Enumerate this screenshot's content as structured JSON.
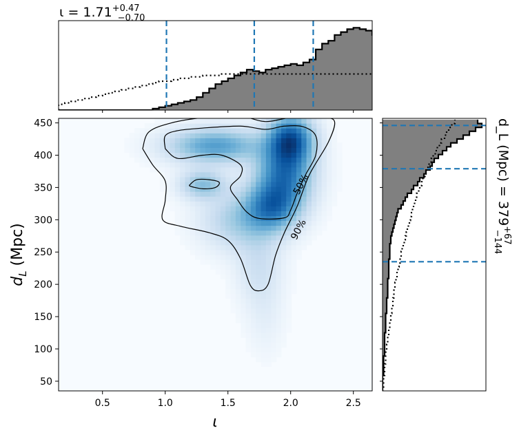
{
  "chart_data": {
    "type": "corner",
    "joint": {
      "type": "heatmap",
      "xlabel": "ι",
      "ylabel": "d_L (Mpc)",
      "xlim": [
        0.15,
        2.65
      ],
      "ylim": [
        35,
        457
      ],
      "xticks": [
        "0.5",
        "1.0",
        "1.5",
        "2.0",
        "2.5"
      ],
      "xtick_values": [
        0.5,
        1.0,
        1.5,
        2.0,
        2.5
      ],
      "yticks": [
        "50",
        "100",
        "150",
        "200",
        "250",
        "300",
        "350",
        "400",
        "450"
      ],
      "ytick_values": [
        50,
        100,
        150,
        200,
        250,
        300,
        350,
        400,
        450
      ],
      "colormap": "Blues",
      "density_peaks": [
        {
          "x": 2.0,
          "y": 425,
          "weight": 1.0,
          "sx": 0.12,
          "sy": 25
        },
        {
          "x": 1.95,
          "y": 370,
          "weight": 0.85,
          "sx": 0.15,
          "sy": 35
        },
        {
          "x": 1.85,
          "y": 320,
          "weight": 0.7,
          "sx": 0.14,
          "sy": 25
        },
        {
          "x": 1.4,
          "y": 415,
          "weight": 0.65,
          "sx": 0.25,
          "sy": 18
        },
        {
          "x": 1.3,
          "y": 355,
          "weight": 0.45,
          "sx": 0.12,
          "sy": 15
        },
        {
          "x": 1.6,
          "y": 300,
          "weight": 0.35,
          "sx": 0.2,
          "sy": 30
        },
        {
          "x": 1.75,
          "y": 230,
          "weight": 0.18,
          "sx": 0.12,
          "sy": 40
        },
        {
          "x": 1.8,
          "y": 150,
          "weight": 0.06,
          "sx": 0.1,
          "sy": 40
        }
      ],
      "contours": [
        {
          "label": "50%",
          "label_at": [
            2.08,
            355
          ],
          "paths": [
            [
              [
                1.0,
                410
              ],
              [
                1.0,
                430
              ],
              [
                1.1,
                438
              ],
              [
                1.3,
                442
              ],
              [
                1.6,
                445
              ],
              [
                1.8,
                440
              ],
              [
                1.95,
                445
              ],
              [
                2.1,
                444
              ],
              [
                2.2,
                430
              ],
              [
                2.2,
                400
              ],
              [
                2.12,
                370
              ],
              [
                2.05,
                340
              ],
              [
                2.0,
                315
              ],
              [
                1.95,
                303
              ],
              [
                1.75,
                302
              ],
              [
                1.65,
                312
              ],
              [
                1.58,
                330
              ],
              [
                1.52,
                350
              ],
              [
                1.6,
                368
              ],
              [
                1.6,
                385
              ],
              [
                1.45,
                400
              ],
              [
                1.3,
                400
              ],
              [
                1.1,
                395
              ],
              [
                1.0,
                410
              ]
            ],
            [
              [
                1.2,
                355
              ],
              [
                1.25,
                362
              ],
              [
                1.35,
                362
              ],
              [
                1.43,
                358
              ],
              [
                1.4,
                350
              ],
              [
                1.3,
                348
              ],
              [
                1.2,
                352
              ],
              [
                1.2,
                355
              ]
            ]
          ]
        },
        {
          "label": "90%",
          "label_at": [
            2.06,
            285
          ],
          "paths": [
            [
              [
                0.82,
                410
              ],
              [
                0.87,
                436
              ],
              [
                1.05,
                450
              ],
              [
                1.3,
                458
              ],
              [
                1.6,
                460
              ],
              [
                1.8,
                452
              ],
              [
                2.0,
                458
              ],
              [
                2.25,
                458
              ],
              [
                2.35,
                452
              ],
              [
                2.3,
                420
              ],
              [
                2.15,
                370
              ],
              [
                2.05,
                320
              ],
              [
                1.95,
                280
              ],
              [
                1.88,
                245
              ],
              [
                1.82,
                200
              ],
              [
                1.75,
                190
              ],
              [
                1.68,
                198
              ],
              [
                1.6,
                240
              ],
              [
                1.5,
                268
              ],
              [
                1.35,
                280
              ],
              [
                1.12,
                290
              ],
              [
                0.98,
                300
              ],
              [
                1.0,
                330
              ],
              [
                1.0,
                360
              ],
              [
                0.9,
                385
              ],
              [
                0.82,
                410
              ]
            ]
          ]
        }
      ]
    },
    "top_marginal": {
      "type": "histogram",
      "title": "ι = 1.71+0.47−0.70",
      "title_main": "ι = 1.71",
      "title_sup": "+0.47",
      "title_sub": "−0.70",
      "median": 1.71,
      "lines": [
        1.01,
        1.71,
        2.18
      ],
      "bin_edges_start": 0.15,
      "bin_width": 0.05,
      "filled_counts": [
        0,
        0,
        0,
        0,
        0,
        0,
        0,
        0,
        0,
        0,
        0,
        0,
        0,
        0,
        0,
        1,
        2,
        3,
        4,
        5,
        6,
        7,
        9,
        12,
        15,
        18,
        20,
        22,
        24,
        26,
        28,
        27,
        26,
        28,
        29,
        30,
        31,
        32,
        31,
        33,
        35,
        42,
        46,
        48,
        52,
        54,
        56,
        57,
        56,
        55,
        52,
        46,
        42,
        34,
        26,
        18,
        12,
        8,
        5,
        3,
        2,
        1,
        0,
        0,
        0,
        0,
        0,
        0,
        0,
        0,
        0,
        0
      ],
      "prior_counts": [
        4,
        5,
        6,
        7,
        8,
        9,
        10,
        11,
        12,
        13,
        14,
        15,
        16,
        17,
        18,
        19,
        20,
        20,
        21,
        22,
        22,
        23,
        23,
        24,
        24,
        24,
        25,
        25,
        25,
        25,
        25,
        25,
        25,
        25,
        25,
        25,
        25,
        25,
        25,
        25,
        25,
        25,
        25,
        25,
        25,
        25,
        25,
        25,
        25,
        25,
        25,
        24,
        24,
        24,
        23,
        23,
        22,
        22,
        21,
        20,
        20,
        19,
        18,
        17,
        16,
        15,
        14,
        13,
        12,
        11,
        10,
        9
      ],
      "ymax": 60
    },
    "right_marginal": {
      "type": "histogram",
      "title": "d_L (Mpc) = 379+67−144",
      "title_main": "d_L (Mpc) = 379",
      "title_sup": "+67",
      "title_sub": "−144",
      "median": 379,
      "lines": [
        235,
        379,
        446
      ],
      "bin_edges_start": 35,
      "bin_width": 6,
      "filled_counts": [
        0,
        0,
        0,
        0,
        1,
        1,
        1,
        1,
        1,
        2,
        2,
        2,
        2,
        2,
        2,
        3,
        3,
        3,
        3,
        3,
        4,
        4,
        4,
        4,
        5,
        5,
        5,
        5,
        5,
        6,
        6,
        6,
        6,
        6,
        7,
        7,
        7,
        7,
        8,
        8,
        9,
        10,
        11,
        12,
        13,
        14,
        15,
        18,
        20,
        22,
        24,
        28,
        30,
        34,
        36,
        40,
        42,
        46,
        48,
        50,
        54,
        58,
        62,
        66,
        72,
        78,
        84,
        90,
        96,
        92
      ],
      "prior_counts": [
        0,
        1,
        1,
        1,
        2,
        2,
        2,
        3,
        3,
        3,
        4,
        4,
        5,
        5,
        6,
        6,
        7,
        7,
        8,
        8,
        9,
        9,
        10,
        10,
        11,
        11,
        12,
        12,
        13,
        14,
        14,
        15,
        16,
        17,
        18,
        18,
        19,
        20,
        21,
        22,
        23,
        24,
        25,
        26,
        27,
        28,
        29,
        30,
        31,
        32,
        33,
        35,
        36,
        38,
        39,
        41,
        42,
        44,
        45,
        47,
        49,
        51,
        53,
        55,
        57,
        60,
        62,
        64,
        67,
        70
      ],
      "xmax": 100
    }
  },
  "colors": {
    "line_blue": "#1f77b4",
    "hist_fill": "#808080",
    "hist_edge": "#000000",
    "contour": "#000000"
  }
}
